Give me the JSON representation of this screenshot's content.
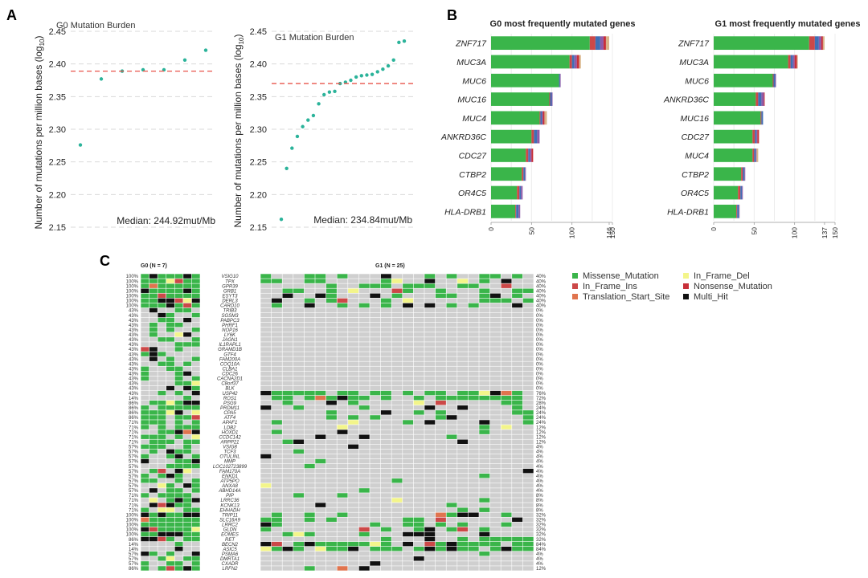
{
  "panel_labels": {
    "a": "A",
    "b": "B",
    "c": "C"
  },
  "colors": {
    "point": "#2bb39a",
    "median_line": "#e8534a",
    "grid": "#d9d9d9",
    "missense": "#3ab54a",
    "in_frame_del": "#f3f58a",
    "in_frame_ins": "#cc4848",
    "nonsense": "#c8303a",
    "translation_start": "#e0744e",
    "multi_hit": "#111111",
    "empty": "#cfcfcf",
    "blue": "#3f6fb5",
    "purple": "#8e5aa8",
    "tan": "#d9b48a"
  },
  "chart_data": [
    {
      "type": "scatter",
      "id": "g0-burden",
      "title": "G0 Mutation Burden",
      "ylabel": "Number of mutations per million bases (log",
      "ylabel_sub": "10",
      "ylabel_end": ")",
      "ylim": [
        2.15,
        2.45
      ],
      "yticks": [
        "2.15",
        "2.20",
        "2.25",
        "2.30",
        "2.35",
        "2.40",
        "2.45"
      ],
      "values": [
        2.276,
        2.377,
        2.389,
        2.391,
        2.391,
        2.406,
        2.421
      ],
      "median_value": 2.389,
      "median_label": "Median: 244.92mut/Mb",
      "grid": true
    },
    {
      "type": "scatter",
      "id": "g1-burden",
      "title": "G1 Mutation Burden",
      "ylabel": "Number of mutations per million bases (log",
      "ylabel_sub": "10",
      "ylabel_end": ")",
      "ylim": [
        2.15,
        2.45
      ],
      "yticks": [
        "2.15",
        "2.20",
        "2.25",
        "2.30",
        "2.35",
        "2.40",
        "2.45"
      ],
      "values": [
        2.162,
        2.24,
        2.271,
        2.289,
        2.304,
        2.314,
        2.321,
        2.339,
        2.353,
        2.357,
        2.358,
        2.37,
        2.372,
        2.375,
        2.38,
        2.382,
        2.383,
        2.384,
        2.388,
        2.392,
        2.397,
        2.406,
        2.433,
        2.435
      ],
      "median_value": 2.37,
      "median_label": "Median: 234.84mut/Mb",
      "grid": true
    },
    {
      "type": "bar",
      "id": "g0-genes",
      "title": "G0 most frequently mutated genes",
      "orientation": "horizontal",
      "categories": [
        "ZNF717",
        "MUC3A",
        "MUC6",
        "MUC16",
        "MUC4",
        "ANKRD36C",
        "CDC27",
        "CTBP2",
        "OR4C5",
        "HLA-DRB1"
      ],
      "series": [
        {
          "key": "missense",
          "values": [
            122,
            97,
            84,
            72,
            60,
            50,
            43,
            38,
            32,
            30
          ]
        },
        {
          "key": "in_frame_ins",
          "values": [
            7,
            3,
            0,
            1,
            1,
            3,
            3,
            2,
            3,
            1
          ]
        },
        {
          "key": "blue",
          "values": [
            6,
            3,
            1,
            2,
            2,
            4,
            2,
            2,
            2,
            3
          ]
        },
        {
          "key": "purple",
          "values": [
            4,
            3,
            1,
            1,
            1,
            3,
            2,
            1,
            2,
            2
          ]
        },
        {
          "key": "nonsense",
          "values": [
            3,
            3,
            0,
            0,
            2,
            0,
            2,
            0,
            0,
            0
          ]
        },
        {
          "key": "tan",
          "values": [
            4,
            2,
            0,
            0,
            3,
            0,
            0,
            0,
            0,
            0
          ]
        }
      ],
      "xlim": [
        0,
        150
      ],
      "xticks": [
        "0",
        "50",
        "100",
        "146",
        "150"
      ],
      "xtick_values": [
        0,
        50,
        100,
        146,
        150
      ]
    },
    {
      "type": "bar",
      "id": "g1-genes",
      "title": "G1 most frequently mutated genes",
      "orientation": "horizontal",
      "categories": [
        "ZNF717",
        "MUC3A",
        "MUC6",
        "ANKRD36C",
        "MUC16",
        "CDC27",
        "MUC4",
        "CTBP2",
        "OR4C5",
        "HLA-DRB1"
      ],
      "series": [
        {
          "key": "missense",
          "values": [
            118,
            92,
            73,
            52,
            58,
            48,
            48,
            34,
            30,
            28
          ]
        },
        {
          "key": "in_frame_ins",
          "values": [
            7,
            3,
            1,
            3,
            1,
            3,
            2,
            2,
            3,
            1
          ]
        },
        {
          "key": "blue",
          "values": [
            5,
            3,
            2,
            4,
            2,
            2,
            2,
            2,
            2,
            2
          ]
        },
        {
          "key": "purple",
          "values": [
            3,
            2,
            1,
            3,
            0,
            1,
            1,
            1,
            1,
            1
          ]
        },
        {
          "key": "nonsense",
          "values": [
            2,
            3,
            0,
            1,
            0,
            2,
            0,
            0,
            0,
            0
          ]
        },
        {
          "key": "tan",
          "values": [
            2,
            1,
            0,
            0,
            0,
            0,
            2,
            0,
            0,
            0
          ]
        }
      ],
      "xlim": [
        0,
        150
      ],
      "xticks": [
        "0",
        "50",
        "100",
        "137",
        "150"
      ],
      "xtick_values": [
        0,
        50,
        100,
        137,
        150
      ]
    }
  ],
  "oncoplot": {
    "g0_label": "G0 (N = 7)",
    "g1_label": "G1 (N = 25)",
    "genes": [
      "VSIG10",
      "TPX",
      "GPR39",
      "GRB1",
      "ESYT3",
      "DERL3",
      "CARD10",
      "TRIB3",
      "SGSM3",
      "PABPC3",
      "PHRF1",
      "NOP16",
      "LY6K",
      "JAGN1",
      "IL1RAPL1",
      "GRAMD1B",
      "GTF4",
      "FAM200A",
      "COQ10A",
      "CLBA1",
      "CDC26",
      "CACNA2D1",
      "C8orf37",
      "BLK",
      "USP42",
      "ROS1",
      "PSG9",
      "PRDM11",
      "CPA5",
      "ATF4",
      "APAF1",
      "LDB2",
      "HOXD1",
      "CCDC142",
      "ARPP21",
      "VSIG8",
      "TCF3",
      "OTULINL",
      "MMP",
      "LOC102723899",
      "FAM170A",
      "ENKD1",
      "ATP5PO",
      "ANXA8",
      "ABHD14A",
      "PIP",
      "LRRC36",
      "KCNK13",
      "EHHADH",
      "TRIP11",
      "SLC16A9",
      "LRRC2",
      "GLDN",
      "EOMES",
      "RET",
      "BECN2",
      "ASIC5",
      "PSMA6",
      "DMRTA1",
      "CXADR",
      "LRFN2"
    ],
    "g0_pct": [
      "100%",
      "100%",
      "100%",
      "100%",
      "100%",
      "100%",
      "100%",
      "43%",
      "43%",
      "43%",
      "43%",
      "43%",
      "43%",
      "43%",
      "43%",
      "43%",
      "43%",
      "43%",
      "43%",
      "43%",
      "43%",
      "43%",
      "43%",
      "43%",
      "43%",
      "14%",
      "86%",
      "86%",
      "86%",
      "86%",
      "71%",
      "71%",
      "71%",
      "71%",
      "71%",
      "57%",
      "57%",
      "57%",
      "57%",
      "57%",
      "57%",
      "57%",
      "57%",
      "57%",
      "57%",
      "71%",
      "71%",
      "71%",
      "71%",
      "100%",
      "100%",
      "100%",
      "100%",
      "100%",
      "86%",
      "14%",
      "14%",
      "57%",
      "57%",
      "57%",
      "86%"
    ],
    "g1_pct": [
      "40%",
      "40%",
      "40%",
      "40%",
      "40%",
      "40%",
      "40%",
      "0%",
      "0%",
      "0%",
      "0%",
      "0%",
      "0%",
      "0%",
      "0%",
      "0%",
      "0%",
      "0%",
      "0%",
      "0%",
      "0%",
      "0%",
      "0%",
      "0%",
      "76%",
      "72%",
      "28%",
      "24%",
      "24%",
      "24%",
      "24%",
      "12%",
      "12%",
      "12%",
      "12%",
      "4%",
      "4%",
      "4%",
      "4%",
      "4%",
      "4%",
      "4%",
      "4%",
      "4%",
      "4%",
      "8%",
      "8%",
      "8%",
      "8%",
      "32%",
      "32%",
      "32%",
      "32%",
      "32%",
      "32%",
      "84%",
      "84%",
      "4%",
      "4%",
      "4%",
      "12%"
    ],
    "legend": [
      {
        "key": "missense",
        "label": "Missense_Mutation"
      },
      {
        "key": "in_frame_del",
        "label": "In_Frame_Del"
      },
      {
        "key": "in_frame_ins",
        "label": "In_Frame_Ins"
      },
      {
        "key": "nonsense",
        "label": "Nonsense_Mutation"
      },
      {
        "key": "translation_start",
        "label": "Translation_Start_Site"
      },
      {
        "key": "multi_hit",
        "label": "Multi_Hit"
      }
    ]
  }
}
